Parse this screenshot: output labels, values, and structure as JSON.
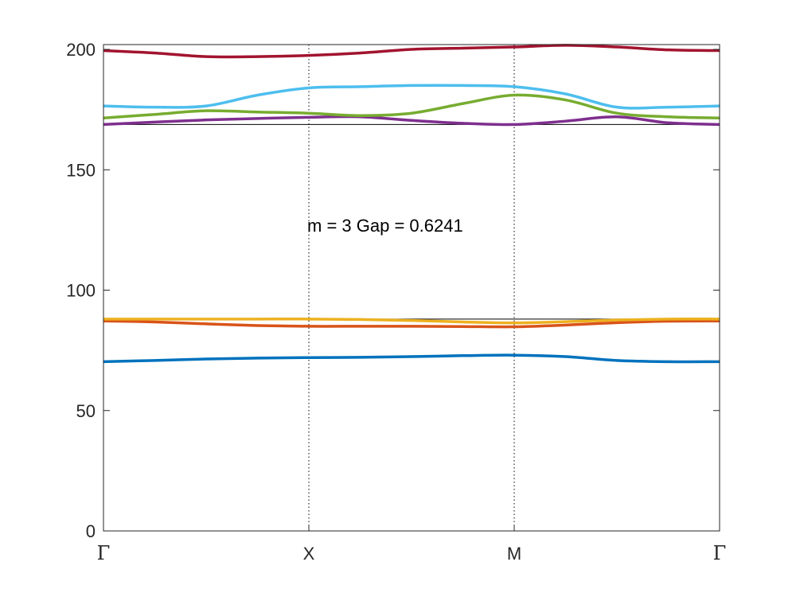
{
  "chart_data": {
    "type": "line",
    "title": "",
    "xlabel": "",
    "ylabel": "",
    "ylim": [
      0,
      202
    ],
    "yticks": [
      0,
      50,
      100,
      150,
      200
    ],
    "ytick_labels": [
      "0",
      "50",
      "100",
      "150",
      "200"
    ],
    "x_high_symmetry": [
      0,
      1,
      2,
      3
    ],
    "x_high_symmetry_labels": [
      "Γ",
      "X",
      "M",
      "Γ"
    ],
    "grid": false,
    "gap_lines": [
      88.0,
      168.8
    ],
    "annotation": "m = 3 Gap = 0.6241",
    "annotation_pos": [
      1.0,
      127
    ],
    "x": [
      0,
      0.25,
      0.5,
      0.75,
      1.0,
      1.25,
      1.5,
      1.75,
      2.0,
      2.25,
      2.5,
      2.75,
      3.0
    ],
    "series": [
      {
        "color": "#0072BD",
        "values": [
          70.3,
          70.8,
          71.4,
          71.8,
          72.0,
          72.1,
          72.4,
          72.8,
          73.0,
          72.4,
          70.8,
          70.3,
          70.3
        ]
      },
      {
        "color": "#D95319",
        "values": [
          87.2,
          86.8,
          86.0,
          85.3,
          85.0,
          85.0,
          85.0,
          84.9,
          84.8,
          85.5,
          86.5,
          87.1,
          87.2
        ]
      },
      {
        "color": "#EDB120",
        "values": [
          88.0,
          88.0,
          88.0,
          88.0,
          88.0,
          87.8,
          87.4,
          86.8,
          86.4,
          86.9,
          87.6,
          88.0,
          88.0
        ]
      },
      {
        "color": "#7E2F8E",
        "values": [
          168.8,
          169.8,
          170.7,
          171.3,
          171.8,
          172.0,
          170.5,
          169.3,
          168.8,
          170.2,
          172.0,
          169.5,
          168.8
        ]
      },
      {
        "color": "#77AC30",
        "values": [
          171.5,
          173.0,
          174.5,
          174.0,
          173.5,
          172.5,
          173.5,
          177.5,
          181.0,
          179.0,
          173.5,
          172.0,
          171.5
        ]
      },
      {
        "color": "#4DBEEE",
        "values": [
          176.5,
          176.0,
          176.5,
          181.0,
          184.0,
          184.5,
          185.0,
          185.0,
          184.5,
          181.5,
          176.0,
          176.0,
          176.5
        ]
      },
      {
        "color": "#A2142F",
        "values": [
          199.5,
          198.5,
          197.0,
          197.0,
          197.5,
          198.5,
          200.0,
          200.5,
          201.0,
          201.7,
          201.0,
          199.8,
          199.5
        ]
      }
    ]
  }
}
